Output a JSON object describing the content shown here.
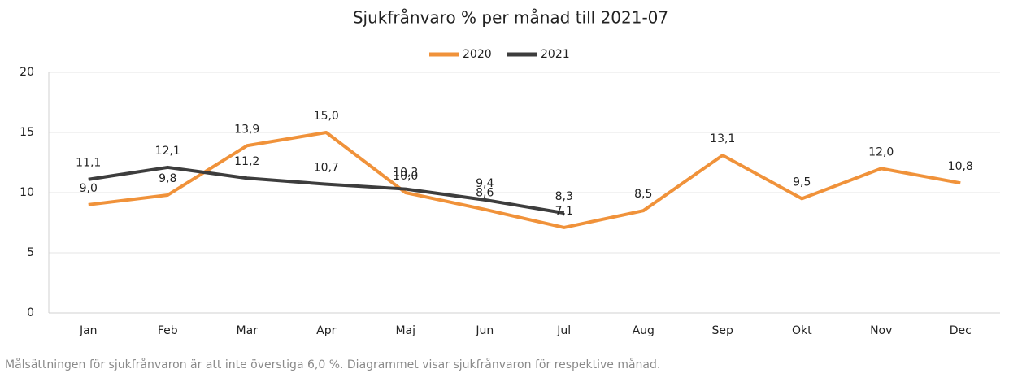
{
  "chart_data": {
    "type": "line",
    "title": "Sjukfrånvaro % per månad till 2021-07",
    "categories": [
      "Jan",
      "Feb",
      "Mar",
      "Apr",
      "Maj",
      "Jun",
      "Jul",
      "Aug",
      "Sep",
      "Okt",
      "Nov",
      "Dec"
    ],
    "series": [
      {
        "name": "2020",
        "color": "#f0923a",
        "values": [
          9.0,
          9.8,
          13.9,
          15.0,
          10.0,
          8.6,
          7.1,
          8.5,
          13.1,
          9.5,
          12.0,
          10.8
        ],
        "value_labels": [
          "9,0",
          "9,8",
          "13,9",
          "15,0",
          "10,0",
          "8,6",
          "7,1",
          "8,5",
          "13,1",
          "9,5",
          "12,0",
          "10,8"
        ]
      },
      {
        "name": "2021",
        "color": "#3d3d3d",
        "values": [
          11.1,
          12.1,
          11.2,
          10.7,
          10.3,
          9.4,
          8.3,
          null,
          null,
          null,
          null,
          null
        ],
        "value_labels": [
          "11,1",
          "12,1",
          "11,2",
          "10,7",
          "10,3",
          "9,4",
          "8,3",
          null,
          null,
          null,
          null,
          null
        ]
      }
    ],
    "ylim": [
      0,
      20
    ],
    "yticks": [
      0,
      5,
      10,
      15,
      20
    ],
    "grid": true,
    "legend": "top",
    "note": "Målsättningen för sjukfrånvaron är att inte överstiga 6,0 %. Diagrammet visar sjukfrånvaron för respektive månad."
  }
}
